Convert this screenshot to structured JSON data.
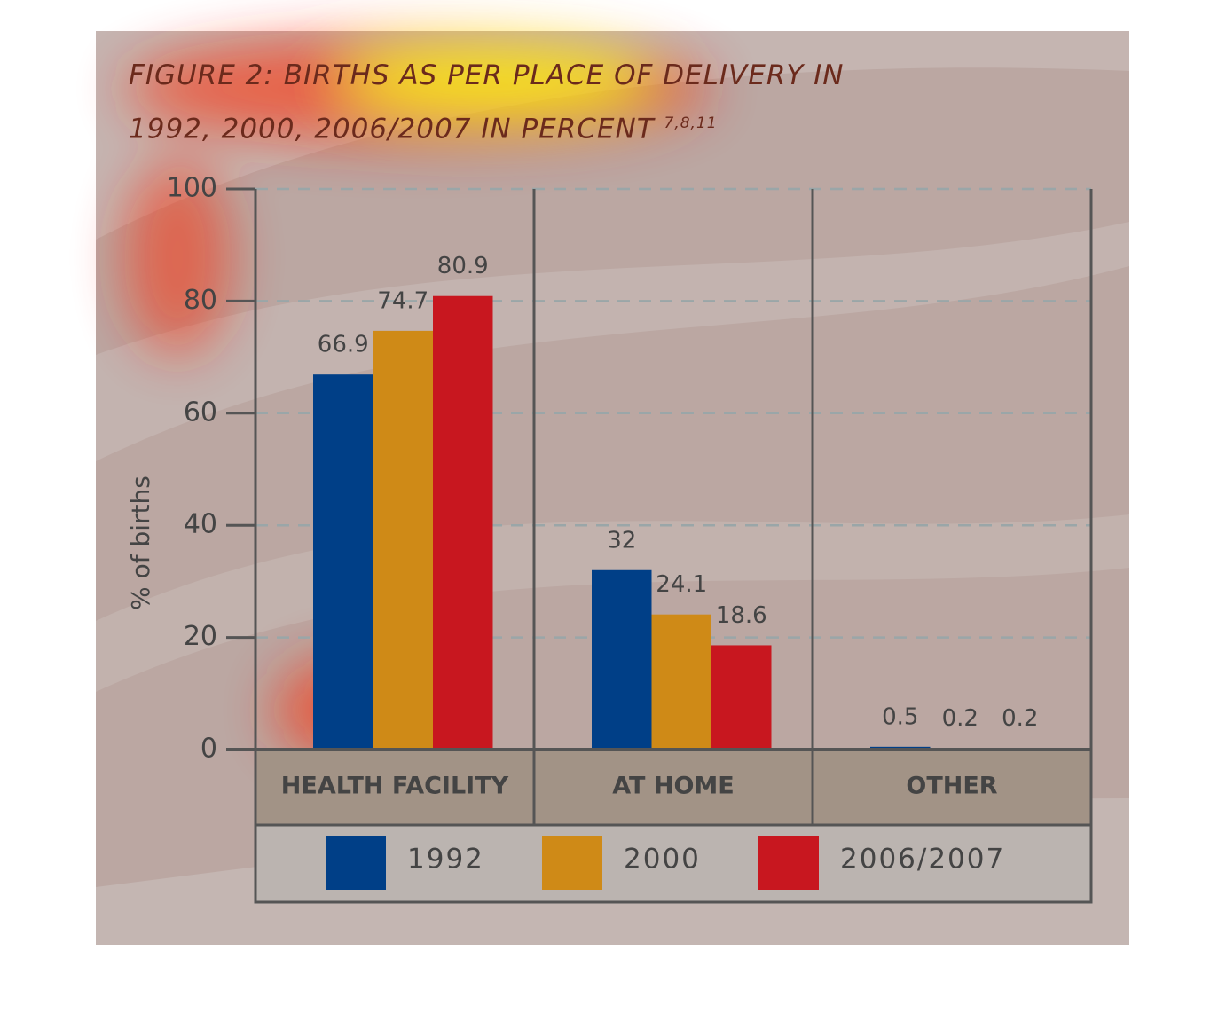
{
  "chart_data": {
    "type": "bar",
    "title": "FIGURE 2: BIRTHS AS PER PLACE OF DELIVERY IN 1992, 2000, 2006/2007 IN PERCENT",
    "title_superscript": "7,8,11",
    "y_label": "% of births",
    "categories": [
      "HEALTH FACILITY",
      "AT HOME",
      "OTHER"
    ],
    "series": [
      {
        "name": "1992",
        "color": "#003f87",
        "values": [
          66.9,
          32,
          0.5
        ]
      },
      {
        "name": "2000",
        "color": "#cf8a17",
        "values": [
          74.7,
          24.1,
          0.2
        ]
      },
      {
        "name": "2006/2007",
        "color": "#c8171f",
        "values": [
          80.9,
          18.6,
          0.2
        ]
      }
    ],
    "ylim": [
      0,
      100
    ],
    "yticks": [
      0,
      20,
      40,
      60,
      80,
      100
    ],
    "grid": true
  }
}
